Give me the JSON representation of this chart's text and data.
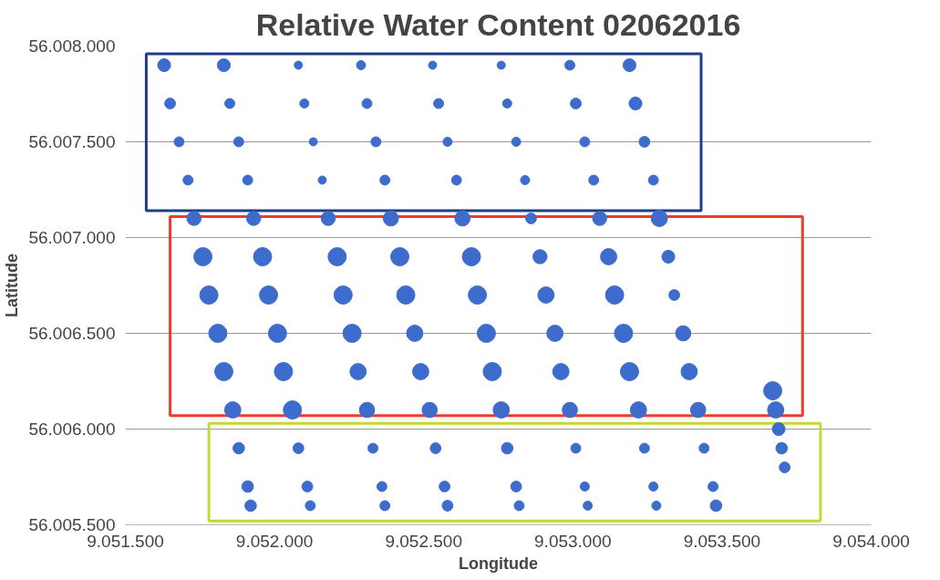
{
  "chart_data": {
    "type": "bubble",
    "title": "Relative Water Content 02062016",
    "xlabel": "Longitude",
    "ylabel": "Latitude",
    "xlim": [
      9051500,
      9054000
    ],
    "ylim": [
      56005500,
      56008000
    ],
    "xticks": [
      {
        "value": 9051500,
        "label": "9.051.500"
      },
      {
        "value": 9052000,
        "label": "9.052.000"
      },
      {
        "value": 9052500,
        "label": "9.052.500"
      },
      {
        "value": 9053000,
        "label": "9.053.000"
      },
      {
        "value": 9053500,
        "label": "9.053.500"
      },
      {
        "value": 9054000,
        "label": "9.054.000"
      }
    ],
    "yticks": [
      {
        "value": 56005500,
        "label": "56.005.500"
      },
      {
        "value": 56006000,
        "label": "56.006.000"
      },
      {
        "value": 56006500,
        "label": "56.006.500"
      },
      {
        "value": 56007000,
        "label": "56.007.000"
      },
      {
        "value": 56007500,
        "label": "56.007.500"
      },
      {
        "value": 56008000,
        "label": "56.008.000"
      }
    ],
    "grid": "y",
    "marker": "circle",
    "series": [
      {
        "color": "#3d6ccc",
        "x": [
          9051630,
          9051650,
          9051680,
          9051710,
          9051730,
          9051760,
          9051780,
          9051810,
          9051830,
          9051860,
          9051880,
          9051910,
          9051920,
          9051830,
          9051850,
          9051880,
          9051910,
          9051930,
          9051960,
          9051980,
          9052010,
          9052030,
          9052060,
          9052080,
          9052110,
          9052120,
          9052080,
          9052100,
          9052130,
          9052160,
          9052180,
          9052210,
          9052230,
          9052260,
          9052280,
          9052310,
          9052330,
          9052360,
          9052370,
          9052290,
          9052310,
          9052340,
          9052370,
          9052390,
          9052420,
          9052440,
          9052470,
          9052490,
          9052520,
          9052540,
          9052570,
          9052580,
          9052530,
          9052550,
          9052580,
          9052610,
          9052630,
          9052660,
          9052680,
          9052710,
          9052730,
          9052760,
          9052780,
          9052810,
          9052820,
          9052760,
          9052780,
          9052810,
          9052840,
          9052860,
          9052890,
          9052910,
          9052940,
          9052960,
          9052990,
          9053010,
          9053040,
          9053050,
          9052990,
          9053010,
          9053040,
          9053070,
          9053090,
          9053120,
          9053140,
          9053170,
          9053190,
          9053220,
          9053240,
          9053270,
          9053280,
          9053190,
          9053210,
          9053240,
          9053270,
          9053290,
          9053320,
          9053340,
          9053370,
          9053390,
          9053420,
          9053440,
          9053470,
          9053480,
          9053670,
          9053680,
          9053690,
          9053700,
          9053710
        ],
        "values": [
          56007900,
          56007700,
          56007500,
          56007300,
          56007100,
          56006900,
          56006700,
          56006500,
          56006300,
          56006100,
          56005900,
          56005700,
          56005600,
          56007900,
          56007700,
          56007500,
          56007300,
          56007100,
          56006900,
          56006700,
          56006500,
          56006300,
          56006100,
          56005900,
          56005700,
          56005600,
          56007900,
          56007700,
          56007500,
          56007300,
          56007100,
          56006900,
          56006700,
          56006500,
          56006300,
          56006100,
          56005900,
          56005700,
          56005600,
          56007900,
          56007700,
          56007500,
          56007300,
          56007100,
          56006900,
          56006700,
          56006500,
          56006300,
          56006100,
          56005900,
          56005700,
          56005600,
          56007900,
          56007700,
          56007500,
          56007300,
          56007100,
          56006900,
          56006700,
          56006500,
          56006300,
          56006100,
          56005900,
          56005700,
          56005600,
          56007900,
          56007700,
          56007500,
          56007300,
          56007100,
          56006900,
          56006700,
          56006500,
          56006300,
          56006100,
          56005900,
          56005700,
          56005600,
          56007900,
          56007700,
          56007500,
          56007300,
          56007100,
          56006900,
          56006700,
          56006500,
          56006300,
          56006100,
          56005900,
          56005700,
          56005600,
          56007900,
          56007700,
          56007500,
          56007300,
          56007100,
          56006900,
          56006700,
          56006500,
          56006300,
          56006100,
          56005900,
          56005700,
          56005600,
          56006200,
          56006100,
          56006000,
          56005900,
          56005800
        ],
        "sizes": [
          0.5,
          0.35,
          0.3,
          0.3,
          0.6,
          1,
          1,
          1,
          1,
          0.8,
          0.4,
          0.4,
          0.4,
          0.5,
          0.3,
          0.3,
          0.3,
          0.6,
          1,
          1,
          1,
          1,
          1,
          0.35,
          0.35,
          0.3,
          0.2,
          0.25,
          0.2,
          0.2,
          0.6,
          1,
          1,
          1,
          0.8,
          0.7,
          0.3,
          0.3,
          0.3,
          0.25,
          0.3,
          0.3,
          0.3,
          0.7,
          1,
          1,
          0.8,
          0.8,
          0.7,
          0.35,
          0.35,
          0.35,
          0.2,
          0.3,
          0.25,
          0.3,
          0.7,
          1,
          1,
          1,
          1,
          0.8,
          0.4,
          0.35,
          0.3,
          0.2,
          0.25,
          0.25,
          0.25,
          0.35,
          0.6,
          0.8,
          0.8,
          0.8,
          0.7,
          0.3,
          0.25,
          0.25,
          0.3,
          0.35,
          0.3,
          0.3,
          0.6,
          0.8,
          1,
          1,
          1,
          0.8,
          0.3,
          0.25,
          0.25,
          0.5,
          0.5,
          0.35,
          0.3,
          0.8,
          0.5,
          0.35,
          0.7,
          0.8,
          0.7,
          0.3,
          0.3,
          0.4,
          1,
          0.8,
          0.5,
          0.4,
          0.35
        ]
      }
    ]
  }
}
